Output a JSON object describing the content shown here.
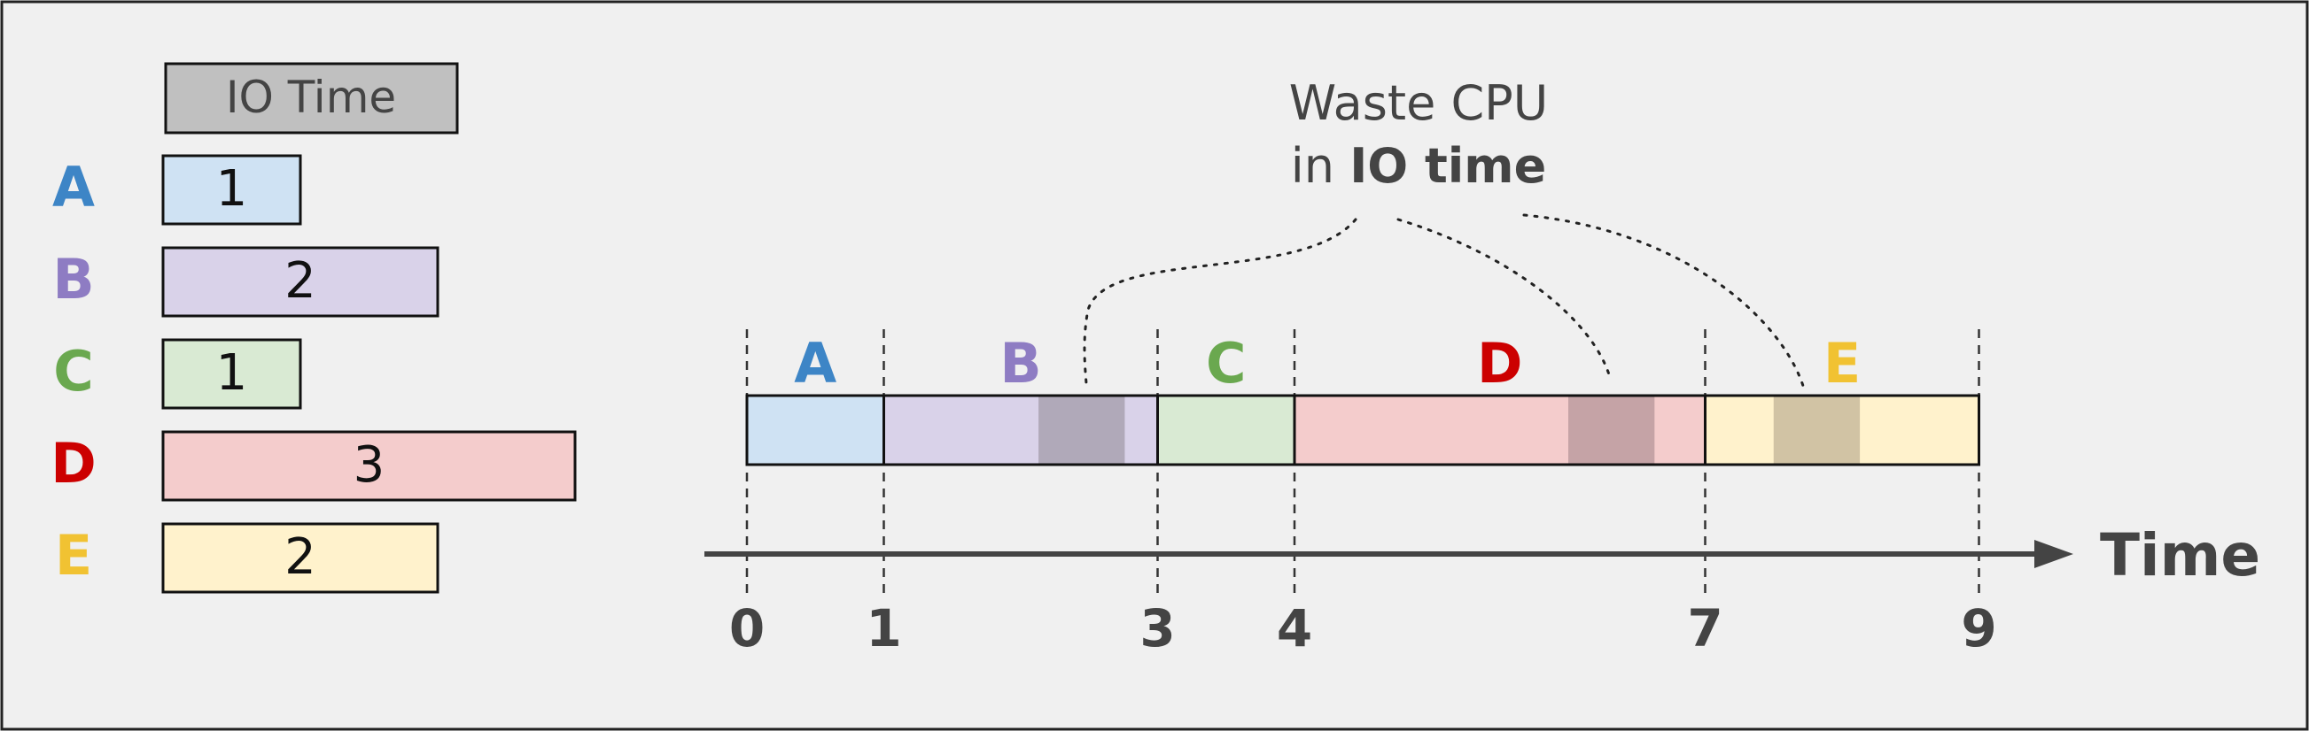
{
  "legend": {
    "header": "IO Time",
    "jobs": [
      {
        "name": "A",
        "duration": "1",
        "color": "#3d85c6",
        "fill": "#cfe2f3"
      },
      {
        "name": "B",
        "duration": "2",
        "color": "#8e7cc3",
        "fill": "#d9d2e9"
      },
      {
        "name": "C",
        "duration": "1",
        "color": "#6aa84f",
        "fill": "#d9ead3"
      },
      {
        "name": "D",
        "duration": "3",
        "color": "#cc0000",
        "fill": "#f4cccc"
      },
      {
        "name": "E",
        "duration": "2",
        "color": "#f1c232",
        "fill": "#fff2cc"
      }
    ]
  },
  "annotation": {
    "line1": "Waste CPU",
    "line2_prefix": "in ",
    "line2_bold": "IO time"
  },
  "timeline": {
    "segments": [
      {
        "name": "A",
        "start": 0,
        "end": 1,
        "fill": "#cfe2f3",
        "label_color": "#3d85c6"
      },
      {
        "name": "B",
        "start": 1,
        "end": 3,
        "fill": "#d9d2e9",
        "label_color": "#8e7cc3",
        "waste": [
          2.13,
          2.76
        ],
        "waste_fill": "#b0a9b9"
      },
      {
        "name": "C",
        "start": 3,
        "end": 4,
        "fill": "#d9ead3",
        "label_color": "#6aa84f"
      },
      {
        "name": "D",
        "start": 4,
        "end": 7,
        "fill": "#f4cccc",
        "label_color": "#cc0000",
        "waste": [
          6.0,
          6.63
        ],
        "waste_fill": "#c5a3a6"
      },
      {
        "name": "E",
        "start": 7,
        "end": 9,
        "fill": "#fff2cc",
        "label_color": "#f1c232",
        "waste": [
          7.5,
          8.13
        ],
        "waste_fill": "#d1c3a4"
      }
    ],
    "ticks": [
      "0",
      "1",
      "3",
      "4",
      "7",
      "9"
    ],
    "axis_label": "Time"
  }
}
